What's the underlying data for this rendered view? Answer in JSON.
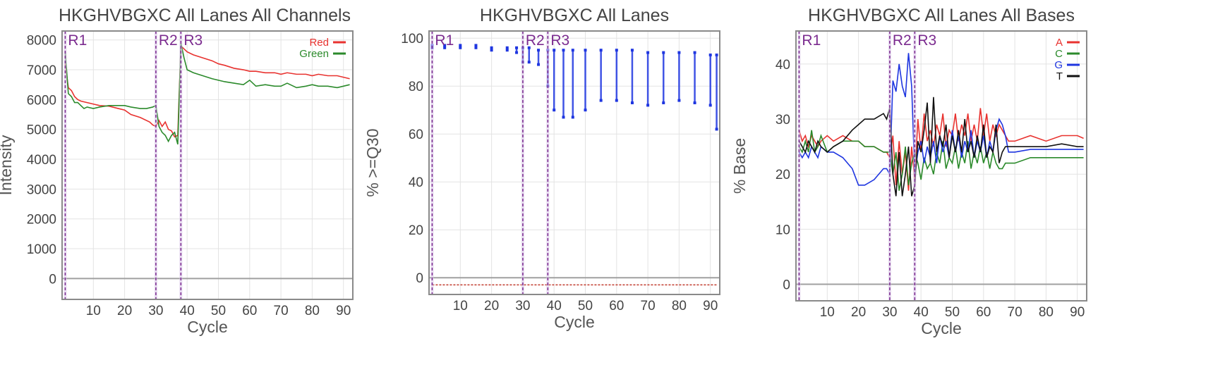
{
  "chart_data": [
    {
      "type": "line",
      "title": "HKGHVBGXC All Lanes All Channels",
      "xlabel": "Cycle",
      "ylabel": "Intensity",
      "xlim": [
        0,
        93
      ],
      "ylim": [
        -700,
        8300
      ],
      "xticks": [
        10,
        20,
        30,
        40,
        50,
        60,
        70,
        80,
        90
      ],
      "yticks": [
        0,
        1000,
        2000,
        3000,
        4000,
        5000,
        6000,
        7000,
        8000
      ],
      "read_markers": [
        {
          "label": "R1",
          "x": 1
        },
        {
          "label": "R2",
          "x": 30
        },
        {
          "label": "R3",
          "x": 38
        }
      ],
      "legend": "top-right",
      "series": [
        {
          "name": "Red",
          "color": "#e8322f",
          "x": [
            1,
            2,
            3,
            4,
            5,
            6,
            8,
            10,
            12,
            15,
            18,
            20,
            22,
            25,
            28,
            29,
            30,
            31,
            32,
            33,
            34,
            35,
            36,
            37,
            38,
            39,
            40,
            42,
            45,
            48,
            50,
            52,
            55,
            58,
            60,
            62,
            65,
            68,
            70,
            72,
            75,
            78,
            80,
            82,
            85,
            88,
            90,
            92
          ],
          "values": [
            7200,
            6400,
            6300,
            6100,
            6000,
            5950,
            5900,
            5850,
            5800,
            5780,
            5700,
            5650,
            5500,
            5400,
            5250,
            5150,
            5100,
            5300,
            5100,
            5250,
            5000,
            4950,
            4750,
            4800,
            7800,
            7700,
            7600,
            7500,
            7400,
            7300,
            7200,
            7150,
            7050,
            7000,
            6950,
            6950,
            6900,
            6900,
            6850,
            6900,
            6850,
            6850,
            6800,
            6850,
            6800,
            6800,
            6750,
            6700
          ]
        },
        {
          "name": "Green",
          "color": "#2b8a2b",
          "x": [
            1,
            2,
            3,
            4,
            5,
            6,
            7,
            8,
            10,
            12,
            15,
            18,
            20,
            22,
            25,
            27,
            29,
            30,
            31,
            32,
            33,
            34,
            35,
            36,
            37,
            38,
            39,
            40,
            42,
            45,
            48,
            50,
            52,
            55,
            58,
            60,
            62,
            65,
            68,
            70,
            72,
            75,
            78,
            80,
            82,
            85,
            88,
            90,
            92
          ],
          "values": [
            7600,
            6200,
            6100,
            5900,
            5900,
            5800,
            5700,
            5750,
            5700,
            5750,
            5800,
            5800,
            5800,
            5750,
            5700,
            5700,
            5750,
            5800,
            5100,
            4900,
            4800,
            4600,
            4800,
            4900,
            4500,
            7900,
            7400,
            7000,
            6900,
            6800,
            6700,
            6650,
            6600,
            6550,
            6500,
            6650,
            6450,
            6500,
            6450,
            6450,
            6550,
            6400,
            6450,
            6500,
            6450,
            6450,
            6400,
            6450,
            6500
          ]
        }
      ]
    },
    {
      "type": "scatter",
      "title": "HKGHVBGXC All Lanes",
      "xlabel": "Cycle",
      "ylabel": "% >=Q30",
      "xlim": [
        0,
        93
      ],
      "ylim": [
        -7,
        103
      ],
      "xticks": [
        10,
        20,
        30,
        40,
        50,
        60,
        70,
        80,
        90
      ],
      "yticks": [
        0,
        20,
        40,
        60,
        80,
        100
      ],
      "read_markers": [
        {
          "label": "R1",
          "x": 1
        },
        {
          "label": "R2",
          "x": 30
        },
        {
          "label": "R3",
          "x": 38
        }
      ],
      "series": [
        {
          "color": "#1f36e0",
          "x": [
            1,
            5,
            10,
            15,
            20,
            25,
            28,
            30,
            32,
            35,
            38,
            40,
            43,
            46,
            50,
            55,
            60,
            65,
            70,
            75,
            80,
            85,
            90,
            92
          ],
          "values": [
            97,
            97,
            97,
            97,
            96,
            96,
            96,
            96,
            96,
            95,
            95,
            95,
            95,
            95,
            95,
            95,
            95,
            95,
            94,
            94,
            94,
            94,
            93,
            93
          ]
        },
        {
          "color": "#1f36e0",
          "x": [
            1,
            5,
            10,
            15,
            20,
            25,
            28,
            30,
            32,
            35,
            38,
            40,
            43,
            46,
            50,
            55,
            60,
            65,
            70,
            75,
            80,
            85,
            90,
            92
          ],
          "values": [
            96,
            96,
            96,
            96,
            95,
            95,
            94,
            90,
            90,
            89,
            80,
            70,
            67,
            67,
            70,
            74,
            74,
            73,
            72,
            73,
            74,
            73,
            72,
            62
          ]
        },
        {
          "color": "#c0392b",
          "x": [
            1,
            10,
            20,
            30,
            40,
            50,
            60,
            70,
            80,
            92
          ],
          "values": [
            -3,
            -3,
            -3,
            -3,
            -3,
            -3,
            -3,
            -3,
            -3,
            -3
          ]
        }
      ]
    },
    {
      "type": "line",
      "title": "HKGHVBGXC All Lanes All Bases",
      "xlabel": "Cycle",
      "ylabel": "% Base",
      "xlim": [
        0,
        93
      ],
      "ylim": [
        -3,
        46
      ],
      "xticks": [
        10,
        20,
        30,
        40,
        50,
        60,
        70,
        80,
        90
      ],
      "yticks": [
        0,
        10,
        20,
        30,
        40
      ],
      "read_markers": [
        {
          "label": "R1",
          "x": 1
        },
        {
          "label": "R2",
          "x": 30
        },
        {
          "label": "R3",
          "x": 38
        }
      ],
      "legend": "top-right",
      "series": [
        {
          "name": "A",
          "color": "#e8322f",
          "x": [
            1,
            2,
            3,
            4,
            5,
            6,
            7,
            8,
            10,
            12,
            15,
            18,
            20,
            22,
            25,
            28,
            29,
            30,
            31,
            32,
            33,
            34,
            35,
            36,
            37,
            38,
            39,
            40,
            41,
            42,
            43,
            44,
            45,
            46,
            47,
            48,
            49,
            50,
            51,
            52,
            53,
            54,
            55,
            56,
            57,
            58,
            59,
            60,
            61,
            62,
            63,
            64,
            65,
            66,
            67,
            68,
            70,
            75,
            80,
            85,
            90,
            92
          ],
          "values": [
            28,
            26,
            27,
            25,
            27,
            26,
            25,
            26,
            27,
            26,
            27,
            26,
            26,
            25,
            25,
            24,
            24,
            23,
            27,
            18,
            26,
            20,
            24,
            17,
            25,
            19,
            30,
            24,
            31,
            26,
            28,
            25,
            29,
            27,
            31,
            25,
            28,
            27,
            31,
            26,
            29,
            27,
            31,
            26,
            29,
            26,
            32,
            27,
            31,
            26,
            29,
            27,
            29,
            28,
            27,
            26,
            26,
            27,
            26,
            27,
            27,
            26.5
          ]
        },
        {
          "name": "C",
          "color": "#2b8a2b",
          "x": [
            1,
            2,
            3,
            4,
            5,
            6,
            7,
            8,
            10,
            12,
            15,
            18,
            20,
            22,
            25,
            28,
            29,
            30,
            31,
            32,
            33,
            34,
            35,
            36,
            37,
            38,
            39,
            40,
            41,
            42,
            43,
            44,
            45,
            46,
            47,
            48,
            49,
            50,
            51,
            52,
            53,
            54,
            55,
            56,
            57,
            58,
            59,
            60,
            61,
            62,
            63,
            64,
            65,
            66,
            67,
            68,
            70,
            75,
            80,
            85,
            90,
            92
          ],
          "values": [
            25,
            24,
            26,
            24,
            28,
            24,
            25,
            27,
            24,
            25,
            26,
            26,
            26,
            25,
            25,
            24,
            24,
            24,
            20,
            24,
            17,
            20,
            25,
            18,
            22,
            24,
            22,
            19,
            23,
            21,
            22,
            20,
            24,
            22,
            26,
            21,
            23,
            22,
            25,
            21,
            24,
            22,
            26,
            21,
            24,
            22,
            25,
            22,
            24,
            21,
            24,
            22,
            21,
            21,
            22,
            22,
            22,
            23,
            23,
            23,
            23,
            23
          ]
        },
        {
          "name": "G",
          "color": "#1f36e0",
          "x": [
            1,
            2,
            3,
            4,
            5,
            6,
            7,
            8,
            10,
            12,
            15,
            18,
            20,
            22,
            25,
            28,
            29,
            30,
            31,
            32,
            33,
            34,
            35,
            36,
            37,
            38,
            39,
            40,
            41,
            42,
            43,
            44,
            45,
            46,
            47,
            48,
            49,
            50,
            51,
            52,
            53,
            54,
            55,
            56,
            57,
            58,
            59,
            60,
            61,
            62,
            63,
            64,
            65,
            66,
            67,
            68,
            70,
            75,
            80,
            85,
            90,
            92
          ],
          "values": [
            24,
            23,
            24,
            23,
            25,
            24,
            23,
            25,
            24,
            24,
            23,
            21,
            18,
            18,
            19,
            21,
            21,
            20,
            37,
            35,
            40,
            36,
            34,
            42,
            36,
            20,
            24,
            26,
            22,
            25,
            23,
            26,
            22,
            27,
            24,
            26,
            23,
            28,
            24,
            27,
            23,
            26,
            24,
            28,
            23,
            26,
            24,
            27,
            23,
            26,
            24,
            28,
            30,
            29,
            27,
            24,
            24,
            24.5,
            24.5,
            24.5,
            24.5,
            24.5
          ]
        },
        {
          "name": "T",
          "color": "#111111",
          "x": [
            1,
            2,
            3,
            4,
            5,
            6,
            7,
            8,
            10,
            12,
            15,
            18,
            20,
            22,
            25,
            28,
            29,
            30,
            31,
            32,
            33,
            34,
            35,
            36,
            37,
            38,
            39,
            40,
            41,
            42,
            43,
            44,
            45,
            46,
            47,
            48,
            49,
            50,
            51,
            52,
            53,
            54,
            55,
            56,
            57,
            58,
            59,
            60,
            61,
            62,
            63,
            64,
            65,
            66,
            67,
            68,
            70,
            75,
            80,
            85,
            90,
            92
          ],
          "values": [
            26,
            25,
            24,
            26,
            25,
            24,
            26,
            25,
            24,
            25,
            26,
            28,
            29,
            30,
            30,
            31,
            30,
            32,
            20,
            16,
            24,
            16,
            20,
            25,
            16,
            18,
            26,
            24,
            28,
            33,
            22,
            34,
            24,
            27,
            25,
            29,
            23,
            27,
            24,
            28,
            24,
            30,
            24,
            26,
            23,
            27,
            24,
            29,
            23,
            25,
            24,
            29,
            22,
            24,
            25,
            25,
            25,
            25,
            25,
            25.5,
            25,
            25
          ]
        }
      ]
    }
  ]
}
